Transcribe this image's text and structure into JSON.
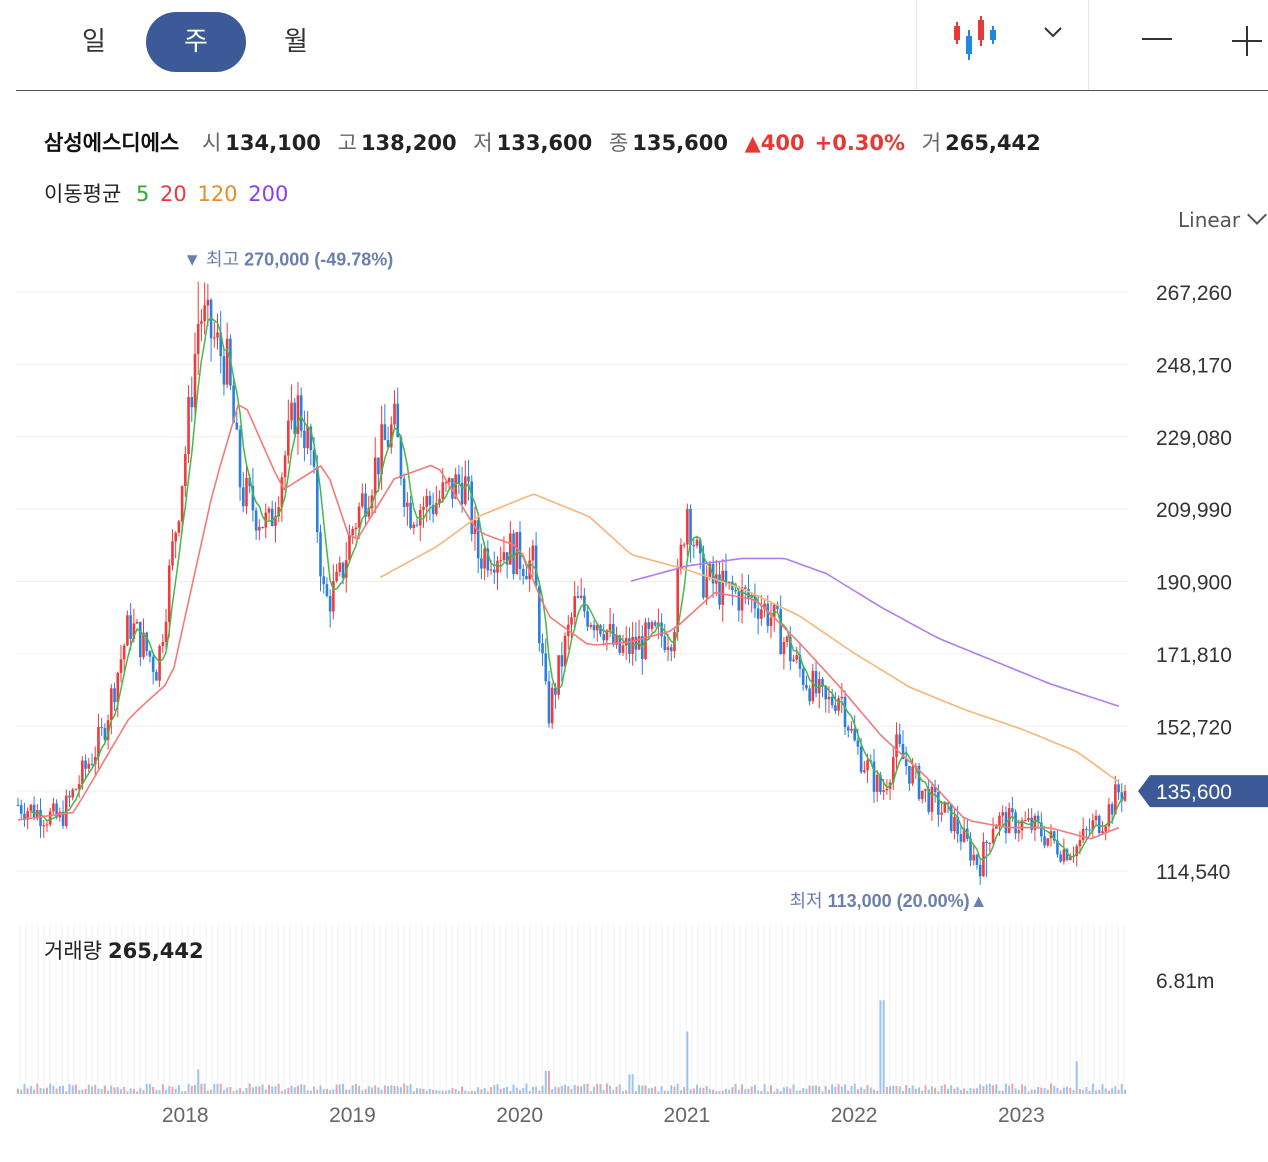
{
  "toolbar": {
    "periods": [
      {
        "label": "일",
        "active": false
      },
      {
        "label": "주",
        "active": true
      },
      {
        "label": "월",
        "active": false
      }
    ],
    "chart_type_icon": "candlestick-icon",
    "dropdown_icon": "chevron-down-icon",
    "zoom_out_icon": "minus-icon",
    "zoom_in_icon": "plus-icon"
  },
  "quote": {
    "name": "삼성에스디에스",
    "open_label": "시",
    "open": "134,100",
    "high_label": "고",
    "high": "138,200",
    "low_label": "저",
    "low": "133,600",
    "close_label": "종",
    "close": "135,600",
    "change": "▲400",
    "change_pct": "+0.30%",
    "volume_label": "거",
    "volume": "265,442"
  },
  "moving_avg": {
    "label": "이동평균",
    "periods": [
      {
        "label": "5",
        "color": "#2eaa2e"
      },
      {
        "label": "20",
        "color": "#f0373c"
      },
      {
        "label": "120",
        "color": "#f08a26"
      },
      {
        "label": "200",
        "color": "#8a3ff5"
      }
    ]
  },
  "scale_selector": "Linear",
  "chart_data": {
    "type": "candlestick",
    "interval": "weekly",
    "yaxis_ticks": [
      267260,
      248170,
      229080,
      209990,
      190900,
      171810,
      152720,
      114540
    ],
    "yaxis_tick_labels": [
      "267,260",
      "248,170",
      "229,080",
      "209,990",
      "190,900",
      "171,810",
      "152,720",
      "114,540"
    ],
    "current_price": 135600,
    "current_price_label": "135,600",
    "xaxis_labels": [
      "2018",
      "2019",
      "2020",
      "2021",
      "2022",
      "2023"
    ],
    "high_marker": {
      "label": "최고",
      "value_text": "270,000 (-49.78%)",
      "value": 270000,
      "date": "2018-01"
    },
    "low_marker": {
      "label": "최저",
      "value_text": "113,000 (20.00%)",
      "value": 113000,
      "date": "2022-10"
    },
    "price_anchors": [
      [
        "2017-01",
        132000
      ],
      [
        "2017-04",
        128000
      ],
      [
        "2017-07",
        150000
      ],
      [
        "2017-09",
        180000
      ],
      [
        "2017-11",
        168000
      ],
      [
        "2018-01",
        225000
      ],
      [
        "2018-02",
        262000
      ],
      [
        "2018-04",
        248000
      ],
      [
        "2018-05",
        215000
      ],
      [
        "2018-07",
        205000
      ],
      [
        "2018-09",
        238000
      ],
      [
        "2018-10",
        225000
      ],
      [
        "2018-11",
        185000
      ],
      [
        "2018-12",
        190000
      ],
      [
        "2019-01",
        205000
      ],
      [
        "2019-03",
        225000
      ],
      [
        "2019-04",
        232000
      ],
      [
        "2019-05",
        210000
      ],
      [
        "2019-07",
        212000
      ],
      [
        "2019-09",
        218000
      ],
      [
        "2019-10",
        198000
      ],
      [
        "2019-12",
        200000
      ],
      [
        "2020-02",
        195000
      ],
      [
        "2020-03",
        155000
      ],
      [
        "2020-05",
        185000
      ],
      [
        "2020-07",
        180000
      ],
      [
        "2020-08",
        172000
      ],
      [
        "2020-10",
        175000
      ],
      [
        "2020-12",
        178000
      ],
      [
        "2021-01",
        212000
      ],
      [
        "2021-02",
        192000
      ],
      [
        "2021-04",
        188000
      ],
      [
        "2021-06",
        186000
      ],
      [
        "2021-07",
        182000
      ],
      [
        "2021-09",
        168000
      ],
      [
        "2021-11",
        158000
      ],
      [
        "2021-12",
        162000
      ],
      [
        "2022-01",
        148000
      ],
      [
        "2022-03",
        135000
      ],
      [
        "2022-04",
        147000
      ],
      [
        "2022-06",
        135000
      ],
      [
        "2022-08",
        128000
      ],
      [
        "2022-10",
        116000
      ],
      [
        "2022-11",
        128000
      ],
      [
        "2023-01",
        127000
      ],
      [
        "2023-02",
        126000
      ],
      [
        "2023-04",
        120000
      ],
      [
        "2023-05",
        121000
      ],
      [
        "2023-06",
        126000
      ],
      [
        "2023-07",
        129000
      ],
      [
        "2023-08",
        135600
      ]
    ],
    "ma_anchors": {
      "ma20": [
        [
          "2017-01",
          128000
        ],
        [
          "2017-05",
          130000
        ],
        [
          "2017-09",
          155000
        ],
        [
          "2017-12",
          165000
        ],
        [
          "2018-03",
          215000
        ],
        [
          "2018-05",
          240000
        ],
        [
          "2018-08",
          215000
        ],
        [
          "2018-11",
          222000
        ],
        [
          "2019-01",
          200000
        ],
        [
          "2019-04",
          218000
        ],
        [
          "2019-07",
          222000
        ],
        [
          "2019-10",
          204000
        ],
        [
          "2020-01",
          200000
        ],
        [
          "2020-03",
          182000
        ],
        [
          "2020-06",
          174000
        ],
        [
          "2020-09",
          175000
        ],
        [
          "2020-12",
          178000
        ],
        [
          "2021-03",
          188000
        ],
        [
          "2021-06",
          186000
        ],
        [
          "2021-09",
          175000
        ],
        [
          "2021-12",
          163000
        ],
        [
          "2022-03",
          150000
        ],
        [
          "2022-06",
          140000
        ],
        [
          "2022-09",
          128000
        ],
        [
          "2022-12",
          126000
        ],
        [
          "2023-03",
          126000
        ],
        [
          "2023-06",
          123000
        ],
        [
          "2023-08",
          126000
        ]
      ],
      "ma120": [
        [
          "2019-03",
          192000
        ],
        [
          "2019-07",
          200000
        ],
        [
          "2019-10",
          208000
        ],
        [
          "2020-02",
          214000
        ],
        [
          "2020-06",
          208000
        ],
        [
          "2020-09",
          198000
        ],
        [
          "2021-01",
          194000
        ],
        [
          "2021-05",
          189000
        ],
        [
          "2021-09",
          182000
        ],
        [
          "2022-01",
          172000
        ],
        [
          "2022-05",
          163000
        ],
        [
          "2022-09",
          157000
        ],
        [
          "2023-01",
          152000
        ],
        [
          "2023-05",
          146000
        ],
        [
          "2023-08",
          138000
        ]
      ],
      "ma200": [
        [
          "2020-09",
          191000
        ],
        [
          "2021-01",
          195000
        ],
        [
          "2021-05",
          197000
        ],
        [
          "2021-08",
          197000
        ],
        [
          "2021-11",
          193000
        ],
        [
          "2022-03",
          184000
        ],
        [
          "2022-07",
          176000
        ],
        [
          "2022-11",
          170000
        ],
        [
          "2023-03",
          164000
        ],
        [
          "2023-08",
          158000
        ]
      ]
    },
    "volume": {
      "label": "거래량",
      "current": "265,442",
      "axis_label": "6.81m",
      "axis_value": 6810000,
      "spikes": [
        [
          "2021-01",
          3800000
        ],
        [
          "2022-03",
          5700000
        ],
        [
          "2020-03",
          1400000
        ],
        [
          "2023-05",
          2000000
        ],
        [
          "2018-02",
          1500000
        ],
        [
          "2020-09",
          1200000
        ]
      ]
    }
  }
}
